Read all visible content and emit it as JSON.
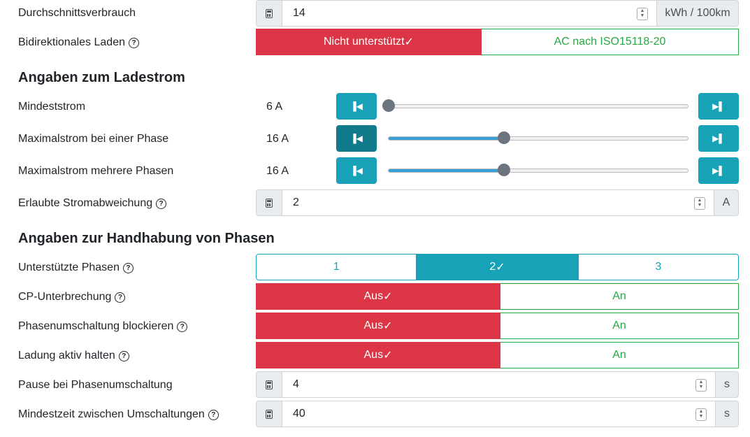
{
  "colors": {
    "danger": "#dc3545",
    "success": "#28a745",
    "info": "#17a2b8"
  },
  "fields": {
    "verbrauch": {
      "label": "Durchschnittsverbrauch",
      "value": "14",
      "unit": "kWh / 100km"
    },
    "bidi": {
      "label": "Bidirektionales Laden",
      "options": [
        "Nicht unterstützt",
        "AC nach ISO15118-20"
      ],
      "selected": 0
    },
    "abweichung": {
      "label": "Erlaubte Stromabweichung",
      "value": "2",
      "unit": "A"
    },
    "pause": {
      "label": "Pause bei Phasenumschaltung",
      "value": "4",
      "unit": "s"
    },
    "mindestzeit": {
      "label": "Mindestzeit zwischen Umschaltungen",
      "value": "40",
      "unit": "s"
    }
  },
  "headings": {
    "ladestrom": "Angaben zum Ladestrom",
    "phasen": "Angaben zur Handhabung von Phasen"
  },
  "sliders": [
    {
      "label": "Mindeststrom",
      "value": "6 A",
      "min": 6,
      "max": 32,
      "current": 6
    },
    {
      "label": "Maximalstrom bei einer Phase",
      "value": "16 A",
      "min": 6,
      "max": 32,
      "current": 16
    },
    {
      "label": "Maximalstrom mehrere Phasen",
      "value": "16 A",
      "min": 6,
      "max": 32,
      "current": 16
    }
  ],
  "phasen": {
    "label": "Unterstützte Phasen",
    "options": [
      "1",
      "2",
      "3"
    ],
    "selected": 1
  },
  "toggles": [
    {
      "label": "CP-Unterbrechung",
      "options": [
        "Aus",
        "An"
      ],
      "selected": 0
    },
    {
      "label": "Phasenumschaltung blockieren",
      "options": [
        "Aus",
        "An"
      ],
      "selected": 0
    },
    {
      "label": "Ladung aktiv halten",
      "options": [
        "Aus",
        "An"
      ],
      "selected": 0
    }
  ],
  "check": "✓"
}
